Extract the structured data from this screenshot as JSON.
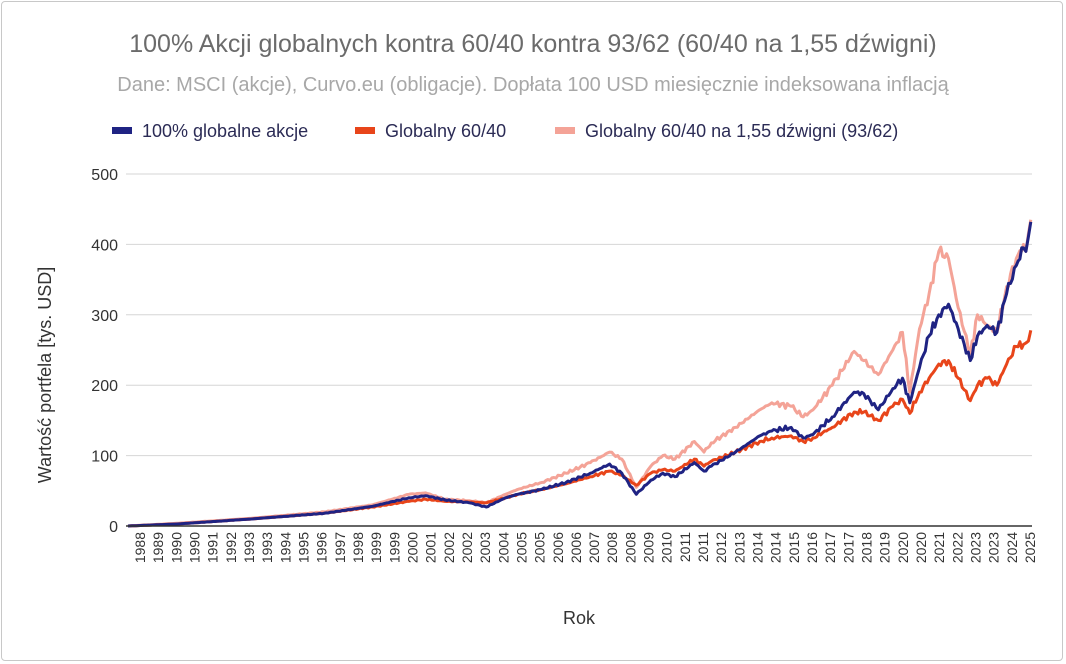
{
  "chart_data": {
    "type": "line",
    "title": "100% Akcji globalnych kontra 60/40 kontra 93/62 (60/40 na 1,55 dźwigni)",
    "subtitle": "Dane: MSCI (akcje), Curvo.eu (obligacje). Dopłata 100 USD miesięcznie indeksowana inflacją",
    "xlabel": "Rok",
    "ylabel": "Wartość portfela [tys. USD]",
    "ylim": [
      0,
      500
    ],
    "yticks": [
      "0",
      "100",
      "200",
      "300",
      "400",
      "500"
    ],
    "grid": true,
    "legend_position": "top",
    "xlim": [
      1987.9,
      2025.25
    ],
    "xtick_labels": [
      "1988",
      "1989",
      "1990",
      "1990",
      "1991",
      "1992",
      "1993",
      "1993",
      "1994",
      "1995",
      "1996",
      "1997",
      "1998",
      "1999",
      "1999",
      "2000",
      "2001",
      "2002",
      "2002",
      "2003",
      "2004",
      "2005",
      "2005",
      "2006",
      "2006",
      "2007",
      "2008",
      "2008",
      "2009",
      "2010",
      "2011",
      "2011",
      "2012",
      "2013",
      "2014",
      "2014",
      "2015",
      "2016",
      "2017",
      "2017",
      "2018",
      "2019",
      "2020",
      "2020",
      "2021",
      "2022",
      "2023",
      "2023",
      "2024",
      "2025"
    ],
    "x": [
      1987.9,
      1990,
      1993,
      1996,
      1998,
      1999.5,
      2000.2,
      2001,
      2002,
      2002.7,
      2003.5,
      2004,
      2005,
      2006,
      2007,
      2007.8,
      2008.3,
      2008.9,
      2009.5,
      2010,
      2010.5,
      2011.3,
      2011.7,
      2012,
      2013,
      2014,
      2014.5,
      2015.3,
      2015.8,
      2016.2,
      2017,
      2017.9,
      2018.3,
      2018.9,
      2019.5,
      2019.9,
      2020.2,
      2020.6,
      2021,
      2021.4,
      2021.8,
      2022.2,
      2022.7,
      2023,
      2023.4,
      2023.8,
      2024.2,
      2024.6,
      2024.9,
      2025,
      2025.2
    ],
    "series": [
      {
        "name": "100% globalne akcje",
        "color": "#1f2383",
        "values": [
          0,
          3,
          10,
          18,
          28,
          40,
          43,
          37,
          33,
          27,
          40,
          45,
          52,
          62,
          75,
          88,
          75,
          45,
          65,
          75,
          70,
          90,
          78,
          85,
          105,
          128,
          135,
          140,
          125,
          130,
          155,
          190,
          188,
          165,
          195,
          210,
          175,
          225,
          270,
          300,
          315,
          280,
          235,
          270,
          285,
          275,
          330,
          370,
          395,
          390,
          432
        ]
      },
      {
        "name": "Globalny 60/40",
        "color": "#e8451a",
        "values": [
          0,
          3,
          10,
          18,
          27,
          35,
          38,
          35,
          34,
          33,
          40,
          45,
          52,
          60,
          70,
          78,
          72,
          58,
          75,
          80,
          78,
          95,
          85,
          92,
          105,
          120,
          125,
          128,
          120,
          125,
          140,
          162,
          162,
          150,
          170,
          180,
          160,
          190,
          210,
          230,
          235,
          210,
          178,
          200,
          210,
          200,
          230,
          255,
          258,
          260,
          278
        ]
      },
      {
        "name": "Globalny 60/40 na 1,55 dźwigni (93/62)",
        "color": "#f4a397",
        "values": [
          0,
          4,
          11,
          20,
          30,
          45,
          47,
          38,
          36,
          33,
          45,
          52,
          62,
          75,
          90,
          105,
          95,
          55,
          85,
          100,
          95,
          120,
          105,
          118,
          140,
          165,
          175,
          170,
          155,
          165,
          200,
          248,
          235,
          215,
          250,
          275,
          190,
          280,
          330,
          390,
          380,
          310,
          245,
          300,
          285,
          275,
          340,
          380,
          400,
          390,
          435
        ]
      }
    ]
  }
}
